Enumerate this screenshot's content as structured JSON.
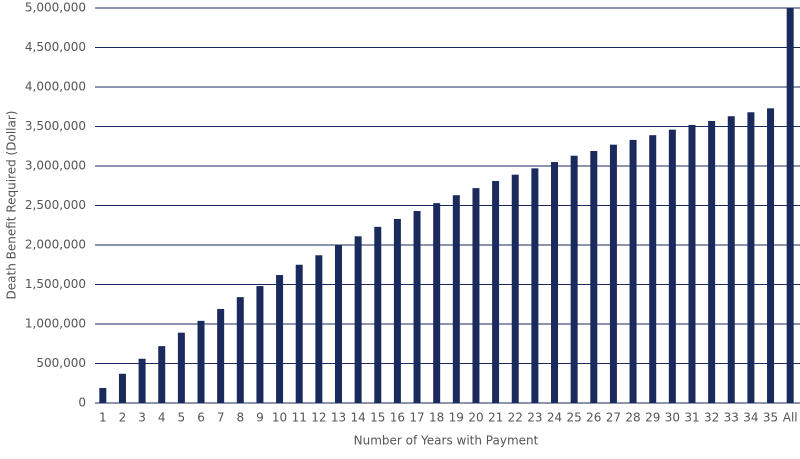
{
  "chart_data": {
    "type": "bar",
    "x_label": "Number of Years with Payment",
    "y_label": "Death Benefit Required (Dollar)",
    "categories": [
      "1",
      "2",
      "3",
      "4",
      "5",
      "6",
      "7",
      "8",
      "9",
      "10",
      "11",
      "12",
      "13",
      "14",
      "15",
      "16",
      "17",
      "18",
      "19",
      "20",
      "21",
      "22",
      "23",
      "24",
      "25",
      "26",
      "27",
      "28",
      "29",
      "30",
      "31",
      "32",
      "33",
      "34",
      "35",
      "All"
    ],
    "values": [
      190000,
      370000,
      560000,
      720000,
      890000,
      1040000,
      1190000,
      1340000,
      1480000,
      1620000,
      1750000,
      1870000,
      2000000,
      2110000,
      2230000,
      2330000,
      2430000,
      2530000,
      2630000,
      2720000,
      2810000,
      2890000,
      2970000,
      3050000,
      3130000,
      3190000,
      3270000,
      3330000,
      3390000,
      3460000,
      3520000,
      3570000,
      3630000,
      3680000,
      3730000,
      5000000
    ],
    "color": "#1b2a5c",
    "ylim": [
      0,
      5000000
    ],
    "yticks": [
      0,
      {
        "value": 500000,
        "label": "500,000"
      },
      {
        "value": 1000000,
        "label": "1,000,000"
      },
      {
        "value": 1500000,
        "label": "1,500,000"
      },
      {
        "value": 2000000,
        "label": "2,000,000"
      },
      {
        "value": 2500000,
        "label": "2,500,000"
      },
      {
        "value": 3000000,
        "label": "3,000,000"
      },
      {
        "value": 3500000,
        "label": "3,500,000"
      },
      {
        "value": 4000000,
        "label": "4,000,000"
      },
      {
        "value": 4500000,
        "label": "4,500,000"
      },
      {
        "value": 5000000,
        "label": "5,000,000"
      }
    ],
    "grid": true
  }
}
